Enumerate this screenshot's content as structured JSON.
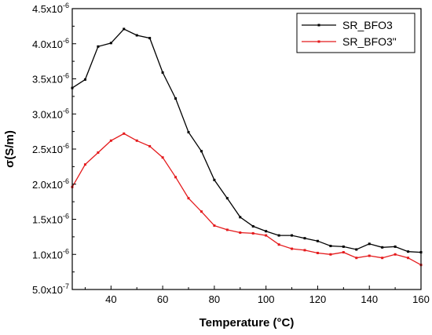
{
  "chart_data": {
    "type": "line",
    "title": "",
    "xlabel": "Temperature (°C)",
    "ylabel": "σ(S/m)",
    "xlim": [
      25,
      160
    ],
    "ylim": [
      5e-07,
      4.5e-06
    ],
    "grid": false,
    "legend_position": "top-right",
    "x_ticks": [
      40,
      60,
      80,
      100,
      120,
      140,
      160
    ],
    "x_tick_labels": [
      "40",
      "60",
      "80",
      "100",
      "120",
      "140",
      "160"
    ],
    "y_ticks": [
      5e-07,
      1e-06,
      1.5e-06,
      2e-06,
      2.5e-06,
      3e-06,
      3.5e-06,
      4e-06,
      4.5e-06
    ],
    "y_tick_labels": [
      {
        "mant": "5.0x10",
        "exp": "-7"
      },
      {
        "mant": "1.0x10",
        "exp": "-6"
      },
      {
        "mant": "1.5x10",
        "exp": "-6"
      },
      {
        "mant": "2.0x10",
        "exp": "-6"
      },
      {
        "mant": "2.5x10",
        "exp": "-6"
      },
      {
        "mant": "3.0x10",
        "exp": "-6"
      },
      {
        "mant": "3.5x10",
        "exp": "-6"
      },
      {
        "mant": "4.0x10",
        "exp": "-6"
      },
      {
        "mant": "4.5x10",
        "exp": "-6"
      }
    ],
    "x": [
      25,
      30,
      35,
      40,
      45,
      50,
      55,
      60,
      65,
      70,
      75,
      80,
      85,
      90,
      95,
      100,
      105,
      110,
      115,
      120,
      125,
      130,
      135,
      140,
      145,
      150,
      155,
      160
    ],
    "series": [
      {
        "name": "SR_BFO3",
        "color": "#000000",
        "values": [
          3.37e-06,
          3.49e-06,
          3.96e-06,
          4.01e-06,
          4.21e-06,
          4.12e-06,
          4.08e-06,
          3.59e-06,
          3.22e-06,
          2.74e-06,
          2.47e-06,
          2.06e-06,
          1.8e-06,
          1.53e-06,
          1.4e-06,
          1.33e-06,
          1.27e-06,
          1.27e-06,
          1.23e-06,
          1.19e-06,
          1.12e-06,
          1.11e-06,
          1.07e-06,
          1.15e-06,
          1.1e-06,
          1.11e-06,
          1.04e-06,
          1.03e-06
        ]
      },
      {
        "name": "SR_BFO3\"",
        "color": "#e41a1c",
        "values": [
          1.96e-06,
          2.28e-06,
          2.45e-06,
          2.62e-06,
          2.72e-06,
          2.62e-06,
          2.54e-06,
          2.38e-06,
          2.1e-06,
          1.8e-06,
          1.61e-06,
          1.41e-06,
          1.35e-06,
          1.31e-06,
          1.3e-06,
          1.27e-06,
          1.14e-06,
          1.08e-06,
          1.06e-06,
          1.02e-06,
          1e-06,
          1.03e-06,
          9.5e-07,
          9.8e-07,
          9.5e-07,
          1e-06,
          9.5e-07,
          8.5e-07
        ]
      }
    ]
  }
}
